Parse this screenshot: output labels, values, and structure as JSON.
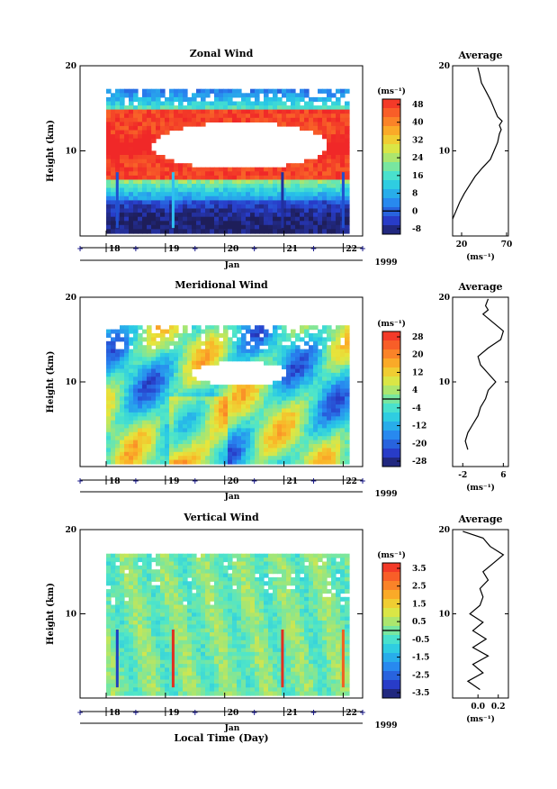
{
  "figure": {
    "xlabel": "Local Time (Day)",
    "year_label": "1999",
    "month_label": "Jan",
    "unit_label": "(ms⁻¹)",
    "average_title": "Average",
    "height_label": "Height (km)"
  },
  "chart_data": [
    {
      "type": "heatmap",
      "title": "Zonal Wind",
      "ylabel": "Height (km)",
      "ylim": [
        0,
        20
      ],
      "yticks": [
        "20",
        "10"
      ],
      "xticks": [
        "18",
        "19",
        "20",
        "21",
        "22"
      ],
      "colorbar": {
        "label": "(ms⁻¹)",
        "ticks": [
          "48",
          "40",
          "32",
          "24",
          "16",
          "8",
          "0",
          "-8"
        ],
        "range": [
          -8,
          52
        ]
      },
      "average": {
        "title": "Average",
        "xlabel": "(ms⁻¹)",
        "xticks": [
          "20",
          "70"
        ],
        "xlim": [
          10,
          72
        ],
        "profile": [
          [
            10,
            2
          ],
          [
            14,
            3
          ],
          [
            18,
            4
          ],
          [
            23,
            5
          ],
          [
            29,
            6
          ],
          [
            35,
            7
          ],
          [
            43,
            8
          ],
          [
            52,
            9
          ],
          [
            56,
            10
          ],
          [
            60,
            11
          ],
          [
            62,
            12
          ],
          [
            64,
            12.5
          ],
          [
            62,
            13
          ],
          [
            65,
            13.5
          ],
          [
            60,
            14
          ],
          [
            56,
            15
          ],
          [
            52,
            16
          ],
          [
            47,
            17
          ],
          [
            42,
            18
          ],
          [
            40,
            19
          ],
          [
            38,
            19.8
          ]
        ]
      }
    },
    {
      "type": "heatmap",
      "title": "Meridional Wind",
      "ylabel": "Height (km)",
      "ylim": [
        0,
        20
      ],
      "yticks": [
        "20",
        "10"
      ],
      "xticks": [
        "18",
        "19",
        "20",
        "21",
        "22"
      ],
      "colorbar": {
        "label": "(ms⁻¹)",
        "ticks": [
          "28",
          "20",
          "12",
          "4",
          "-4",
          "-12",
          "-20",
          "-28"
        ],
        "range": [
          -30,
          30
        ]
      },
      "average": {
        "title": "Average",
        "xlabel": "(ms⁻¹)",
        "xticks": [
          "-2",
          "6"
        ],
        "xlim": [
          -4,
          7
        ],
        "profile": [
          [
            -1,
            2
          ],
          [
            -1.5,
            3
          ],
          [
            -1,
            4
          ],
          [
            0,
            5
          ],
          [
            1,
            6
          ],
          [
            1.5,
            7
          ],
          [
            2.5,
            8
          ],
          [
            3,
            9
          ],
          [
            4.5,
            10
          ],
          [
            3,
            11
          ],
          [
            1.5,
            12
          ],
          [
            1,
            13
          ],
          [
            3,
            14
          ],
          [
            5.5,
            15
          ],
          [
            6,
            16
          ],
          [
            4,
            17
          ],
          [
            2,
            18
          ],
          [
            3,
            18.5
          ],
          [
            2.5,
            19
          ],
          [
            3,
            19.8
          ]
        ]
      }
    },
    {
      "type": "heatmap",
      "title": "Vertical Wind",
      "ylabel": "Height (km)",
      "ylim": [
        0,
        20
      ],
      "yticks": [
        "20",
        "10"
      ],
      "xticks": [
        "18",
        "19",
        "20",
        "21",
        "22"
      ],
      "colorbar": {
        "label": "(ms⁻¹)",
        "ticks": [
          "3.5",
          "2.5",
          "1.5",
          "0.5",
          "-0.5",
          "-1.5",
          "-2.5",
          "-3.5"
        ],
        "range": [
          -4,
          4
        ]
      },
      "average": {
        "title": "Average",
        "xlabel": "(ms⁻¹)",
        "xticks": [
          "0.0",
          "0.2"
        ],
        "xlim": [
          -0.25,
          0.3
        ],
        "profile": [
          [
            0.02,
            1
          ],
          [
            -0.1,
            2
          ],
          [
            0.05,
            3
          ],
          [
            -0.05,
            4
          ],
          [
            0.1,
            5
          ],
          [
            -0.05,
            6
          ],
          [
            0.08,
            7
          ],
          [
            -0.05,
            8
          ],
          [
            0.05,
            9
          ],
          [
            -0.08,
            10
          ],
          [
            0.02,
            11
          ],
          [
            0.05,
            12
          ],
          [
            0.02,
            13
          ],
          [
            0.1,
            14
          ],
          [
            0.05,
            15
          ],
          [
            0.15,
            16
          ],
          [
            0.25,
            17
          ],
          [
            0.12,
            18
          ],
          [
            0.05,
            19
          ],
          [
            -0.15,
            19.8
          ]
        ]
      }
    }
  ]
}
